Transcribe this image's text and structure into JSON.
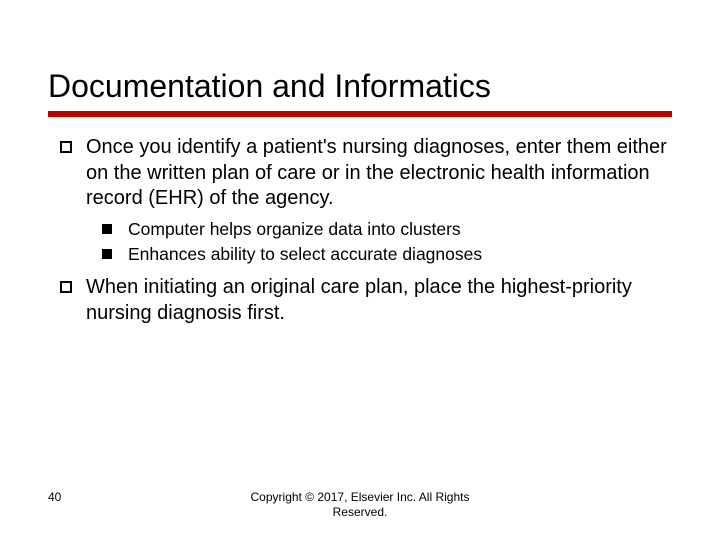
{
  "title": "Documentation and Informatics",
  "underline_color": "#c00000",
  "bullets": [
    {
      "text": "Once you identify a patient's nursing diagnoses, enter them either on the written plan of care or in the electronic health information record (EHR) of the agency.",
      "sub": [
        "Computer helps organize data into clusters",
        "Enhances ability to select accurate diagnoses"
      ]
    },
    {
      "text": "When initiating an original care plan, place the highest-priority nursing diagnosis first.",
      "sub": []
    }
  ],
  "page_number": "40",
  "copyright_line1": "Copyright © 2017, Elsevier Inc. All Rights",
  "copyright_line2": "Reserved.",
  "colors": {
    "background": "#ffffff",
    "text": "#000000",
    "accent": "#c00000"
  },
  "fontsizes": {
    "title": 32,
    "body": 20,
    "sub": 17.5,
    "footer": 12
  }
}
